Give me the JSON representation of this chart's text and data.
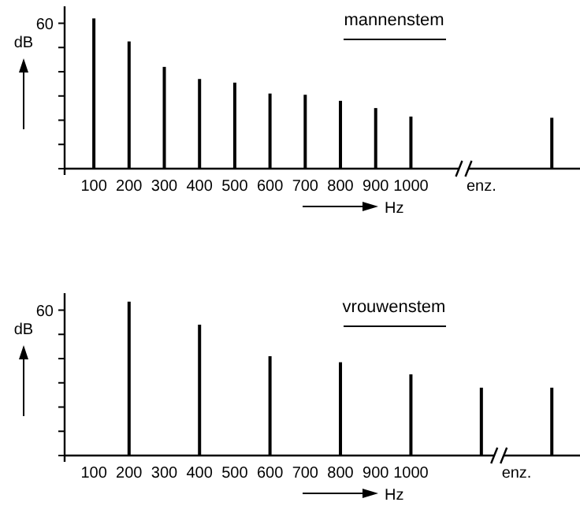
{
  "chart_data": [
    {
      "type": "bar",
      "title": "mannenstem",
      "xlabel": "Hz",
      "ylabel": "dB",
      "color": "#000000",
      "categories": [
        "100",
        "200",
        "300",
        "400",
        "500",
        "600",
        "700",
        "800",
        "900",
        "1000",
        null,
        "enz.",
        null,
        null
      ],
      "values": [
        62,
        52.5,
        42,
        37,
        35.5,
        31,
        30.5,
        28,
        25,
        21.5,
        null,
        null,
        null,
        21
      ],
      "ylim": [
        0,
        67
      ],
      "yticks": [
        {
          "value": 0,
          "label": null
        },
        {
          "value": 10,
          "label": null
        },
        {
          "value": 20,
          "label": null
        },
        {
          "value": 30,
          "label": null
        },
        {
          "value": 40,
          "label": null
        },
        {
          "value": 50,
          "label": null
        },
        60
      ]
    },
    {
      "type": "bar",
      "title": "vrouwenstem",
      "xlabel": "Hz",
      "ylabel": "dB",
      "color": "#000000",
      "categories": [
        "100",
        "200",
        "300",
        "400",
        "500",
        "600",
        "700",
        "800",
        "900",
        "1000",
        null,
        null,
        "enz.",
        null
      ],
      "values": [
        null,
        63.5,
        null,
        54,
        null,
        41,
        null,
        38.5,
        null,
        33.5,
        null,
        28,
        null,
        28
      ],
      "ylim": [
        0,
        67
      ],
      "yticks": [
        {
          "value": 0,
          "label": null
        },
        {
          "value": 10,
          "label": null
        },
        {
          "value": 20,
          "label": null
        },
        {
          "value": 30,
          "label": null
        },
        {
          "value": 40,
          "label": null
        },
        {
          "value": 50,
          "label": null
        },
        60
      ]
    }
  ]
}
